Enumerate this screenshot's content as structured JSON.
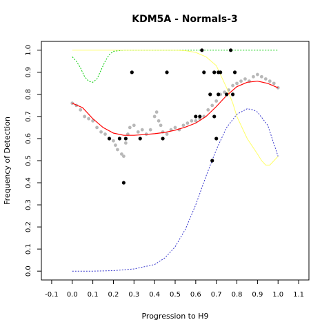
{
  "chart_data": {
    "type": "scatter",
    "title": "KDM5A - Normals-3",
    "xlabel": "Progression to H9",
    "ylabel": "Frequency of Detection",
    "xlim": [
      -0.15,
      1.15
    ],
    "ylim": [
      -0.04,
      1.04
    ],
    "x_ticks": [
      -0.1,
      0.0,
      0.1,
      0.2,
      0.3,
      0.4,
      0.5,
      0.6,
      0.7,
      0.8,
      0.9,
      1.0,
      1.1
    ],
    "y_ticks": [
      0.0,
      0.1,
      0.2,
      0.3,
      0.4,
      0.5,
      0.6,
      0.7,
      0.8,
      0.9,
      1.0
    ],
    "grid": false,
    "legend": "none",
    "colors": {
      "gray_points": "#b8b8b8",
      "black_points": "#000000",
      "red_fit": "#ff0000",
      "green_curve": "#00cc00",
      "yellow_curve": "#ffff66",
      "blue_curve": "#3333cc"
    },
    "series": [
      {
        "kind": "black_points",
        "x": [
          0.18,
          0.23,
          0.25,
          0.26,
          0.29,
          0.33,
          0.44,
          0.46,
          0.6,
          0.62,
          0.63,
          0.64,
          0.67,
          0.68,
          0.69,
          0.69,
          0.7,
          0.71,
          0.71,
          0.72,
          0.75,
          0.77,
          0.78,
          0.79
        ],
        "y": [
          0.6,
          0.6,
          0.4,
          0.6,
          0.9,
          0.6,
          0.6,
          0.9,
          0.7,
          0.7,
          1.0,
          0.9,
          0.8,
          0.5,
          0.9,
          0.7,
          0.6,
          0.8,
          0.9,
          0.9,
          0.8,
          1.0,
          0.8,
          0.9
        ]
      },
      {
        "kind": "gray_points",
        "x": [
          0.0,
          0.02,
          0.04,
          0.06,
          0.08,
          0.1,
          0.12,
          0.14,
          0.16,
          0.18,
          0.2,
          0.21,
          0.22,
          0.23,
          0.24,
          0.25,
          0.26,
          0.27,
          0.28,
          0.3,
          0.32,
          0.34,
          0.36,
          0.38,
          0.4,
          0.41,
          0.42,
          0.43,
          0.44,
          0.46,
          0.48,
          0.5,
          0.52,
          0.54,
          0.56,
          0.58,
          0.6,
          0.62,
          0.64,
          0.66,
          0.68,
          0.7,
          0.72,
          0.74,
          0.76,
          0.78,
          0.8,
          0.82,
          0.84,
          0.86,
          0.88,
          0.9,
          0.92,
          0.94,
          0.96,
          0.98,
          1.0
        ],
        "y": [
          0.76,
          0.75,
          0.73,
          0.7,
          0.69,
          0.68,
          0.65,
          0.63,
          0.62,
          0.6,
          0.59,
          0.57,
          0.55,
          0.6,
          0.53,
          0.52,
          0.58,
          0.62,
          0.65,
          0.66,
          0.63,
          0.64,
          0.62,
          0.64,
          0.7,
          0.72,
          0.68,
          0.66,
          0.63,
          0.62,
          0.64,
          0.65,
          0.64,
          0.66,
          0.67,
          0.68,
          0.68,
          0.69,
          0.7,
          0.73,
          0.75,
          0.77,
          0.8,
          0.81,
          0.82,
          0.84,
          0.85,
          0.86,
          0.87,
          0.86,
          0.88,
          0.89,
          0.88,
          0.87,
          0.86,
          0.85,
          0.83
        ]
      },
      {
        "kind": "red_fit",
        "x": [
          0.0,
          0.05,
          0.1,
          0.15,
          0.2,
          0.25,
          0.3,
          0.35,
          0.4,
          0.45,
          0.5,
          0.55,
          0.6,
          0.65,
          0.7,
          0.75,
          0.8,
          0.85,
          0.9,
          0.95,
          1.0
        ],
        "y": [
          0.76,
          0.74,
          0.69,
          0.65,
          0.625,
          0.615,
          0.615,
          0.618,
          0.622,
          0.628,
          0.638,
          0.652,
          0.67,
          0.7,
          0.745,
          0.795,
          0.835,
          0.855,
          0.86,
          0.85,
          0.83
        ]
      },
      {
        "kind": "green_curve",
        "x": [
          0.0,
          0.02,
          0.04,
          0.06,
          0.08,
          0.1,
          0.12,
          0.14,
          0.16,
          0.18,
          0.2,
          0.25,
          0.3,
          0.4,
          0.5,
          0.6,
          0.7,
          0.8,
          0.9,
          1.0
        ],
        "y": [
          0.97,
          0.95,
          0.92,
          0.88,
          0.86,
          0.855,
          0.87,
          0.91,
          0.95,
          0.98,
          0.995,
          1.0,
          1.0,
          1.0,
          1.0,
          1.0,
          1.0,
          1.0,
          1.0,
          1.0
        ]
      },
      {
        "kind": "yellow_curve",
        "x": [
          0.0,
          0.2,
          0.4,
          0.5,
          0.55,
          0.6,
          0.65,
          0.7,
          0.72,
          0.75,
          0.78,
          0.8,
          0.85,
          0.9,
          0.92,
          0.94,
          0.96,
          0.98,
          1.0
        ],
        "y": [
          1.0,
          1.0,
          1.0,
          1.0,
          0.998,
          0.99,
          0.97,
          0.93,
          0.89,
          0.83,
          0.76,
          0.7,
          0.6,
          0.53,
          0.5,
          0.48,
          0.48,
          0.5,
          0.52
        ]
      },
      {
        "kind": "blue_curve",
        "x": [
          0.0,
          0.1,
          0.2,
          0.3,
          0.4,
          0.45,
          0.5,
          0.55,
          0.6,
          0.65,
          0.7,
          0.75,
          0.8,
          0.85,
          0.88,
          0.9,
          0.95,
          1.0
        ],
        "y": [
          0.0,
          0.0,
          0.002,
          0.01,
          0.03,
          0.06,
          0.11,
          0.19,
          0.3,
          0.43,
          0.55,
          0.65,
          0.71,
          0.735,
          0.73,
          0.72,
          0.66,
          0.52
        ]
      }
    ]
  }
}
